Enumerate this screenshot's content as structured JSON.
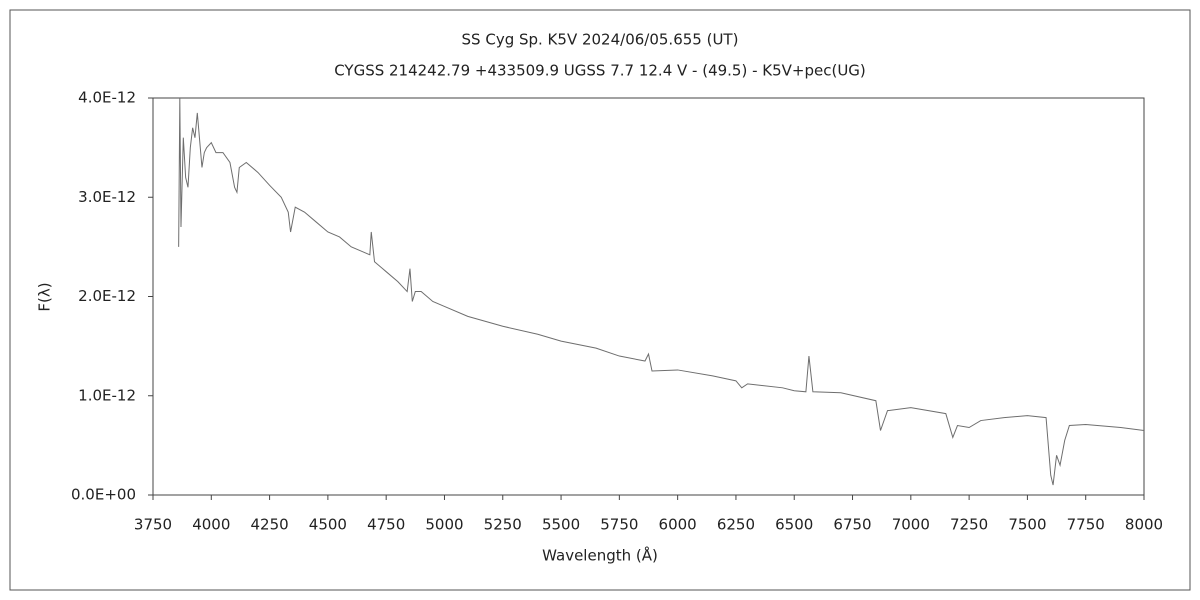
{
  "chart_data": {
    "type": "line",
    "title": "SS Cyg    Sp. K5V    2024/06/05.655 (UT)",
    "subtitle": "CYGSS 214242.79 +433509.9 UGSS 7.7 12.4 V - (49.5) - K5V+pec(UG)",
    "x_label": "Wavelength (Å)",
    "y_label": "F(λ)",
    "xlim": [
      3750,
      8000
    ],
    "xticks": [
      3750,
      4000,
      4250,
      4500,
      4750,
      5000,
      5250,
      5500,
      5750,
      6000,
      6250,
      6500,
      6750,
      7000,
      7250,
      7500,
      7750,
      8000
    ],
    "ylim": [
      0,
      4e-12
    ],
    "yticks": [
      {
        "value": 0,
        "label": "0.0E+00"
      },
      {
        "value": 1e-12,
        "label": "1.0E-12"
      },
      {
        "value": 2e-12,
        "label": "2.0E-12"
      },
      {
        "value": 3e-12,
        "label": "3.0E-12"
      },
      {
        "value": 4e-12,
        "label": "4.0E-12"
      }
    ],
    "x": [
      3860,
      3865,
      3870,
      3880,
      3890,
      3900,
      3910,
      3920,
      3930,
      3940,
      3960,
      3970,
      3980,
      4000,
      4020,
      4050,
      4080,
      4100,
      4110,
      4120,
      4150,
      4200,
      4250,
      4300,
      4330,
      4340,
      4360,
      4400,
      4450,
      4500,
      4550,
      4600,
      4650,
      4680,
      4686,
      4700,
      4750,
      4800,
      4840,
      4852,
      4862,
      4875,
      4900,
      4950,
      5000,
      5100,
      5250,
      5400,
      5500,
      5650,
      5750,
      5860,
      5875,
      5890,
      6000,
      6150,
      6250,
      6275,
      6300,
      6450,
      6500,
      6550,
      6563,
      6580,
      6700,
      6850,
      6870,
      6900,
      7000,
      7150,
      7180,
      7200,
      7250,
      7300,
      7400,
      7500,
      7580,
      7600,
      7610,
      7625,
      7640,
      7660,
      7680,
      7750,
      7800,
      7900,
      8000
    ],
    "series": [
      {
        "name": "SS Cyg",
        "color": "#6e6e6e",
        "values": [
          2.5e-12,
          4e-12,
          2.7e-12,
          3.6e-12,
          3.2e-12,
          3.1e-12,
          3.5e-12,
          3.7e-12,
          3.6e-12,
          3.85e-12,
          3.3e-12,
          3.45e-12,
          3.5e-12,
          3.55e-12,
          3.45e-12,
          3.45e-12,
          3.35e-12,
          3.1e-12,
          3.05e-12,
          3.3e-12,
          3.35e-12,
          3.25e-12,
          3.12e-12,
          3e-12,
          2.85e-12,
          2.65e-12,
          2.9e-12,
          2.85e-12,
          2.75e-12,
          2.65e-12,
          2.6e-12,
          2.5e-12,
          2.45e-12,
          2.42e-12,
          2.65e-12,
          2.35e-12,
          2.25e-12,
          2.15e-12,
          2.05e-12,
          2.28e-12,
          1.95e-12,
          2.05e-12,
          2.05e-12,
          1.95e-12,
          1.9e-12,
          1.8e-12,
          1.7e-12,
          1.62e-12,
          1.55e-12,
          1.48e-12,
          1.4e-12,
          1.35e-12,
          1.42e-12,
          1.25e-12,
          1.26e-12,
          1.2e-12,
          1.15e-12,
          1.08e-12,
          1.12e-12,
          1.08e-12,
          1.05e-12,
          1.04e-12,
          1.4e-12,
          1.04e-12,
          1.03e-12,
          9.5e-13,
          6.5e-13,
          8.5e-13,
          8.8e-13,
          8.2e-13,
          5.8e-13,
          7e-13,
          6.8e-13,
          7.5e-13,
          7.8e-13,
          8e-13,
          7.8e-13,
          2e-13,
          1e-13,
          4e-13,
          3e-13,
          5.5e-13,
          7e-13,
          7.1e-13,
          7e-13,
          6.8e-13,
          6.5e-13
        ]
      }
    ],
    "grid": false
  }
}
